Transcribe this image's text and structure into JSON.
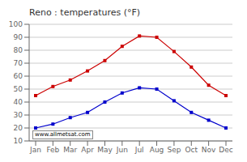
{
  "chart_data": {
    "type": "line",
    "title": "Reno : temperatures (°F)",
    "categories": [
      "Jan",
      "Feb",
      "Mar",
      "Apr",
      "May",
      "Jun",
      "Jul",
      "Aug",
      "Sep",
      "Oct",
      "Nov",
      "Dec"
    ],
    "series": [
      {
        "color": "#cc0000",
        "marker": "square",
        "values": [
          45,
          52,
          57,
          64,
          72,
          83,
          91,
          90,
          79,
          67,
          53,
          45
        ]
      },
      {
        "color": "#0000cc",
        "marker": "square",
        "values": [
          20,
          23,
          28,
          32,
          40,
          47,
          51,
          50,
          41,
          32,
          26,
          20
        ]
      }
    ],
    "ylim": [
      10,
      100
    ],
    "yticks": [
      10,
      20,
      30,
      40,
      50,
      60,
      70,
      80,
      90,
      100
    ],
    "grid": true,
    "annotations": [
      "www.allmetsat.com"
    ]
  }
}
